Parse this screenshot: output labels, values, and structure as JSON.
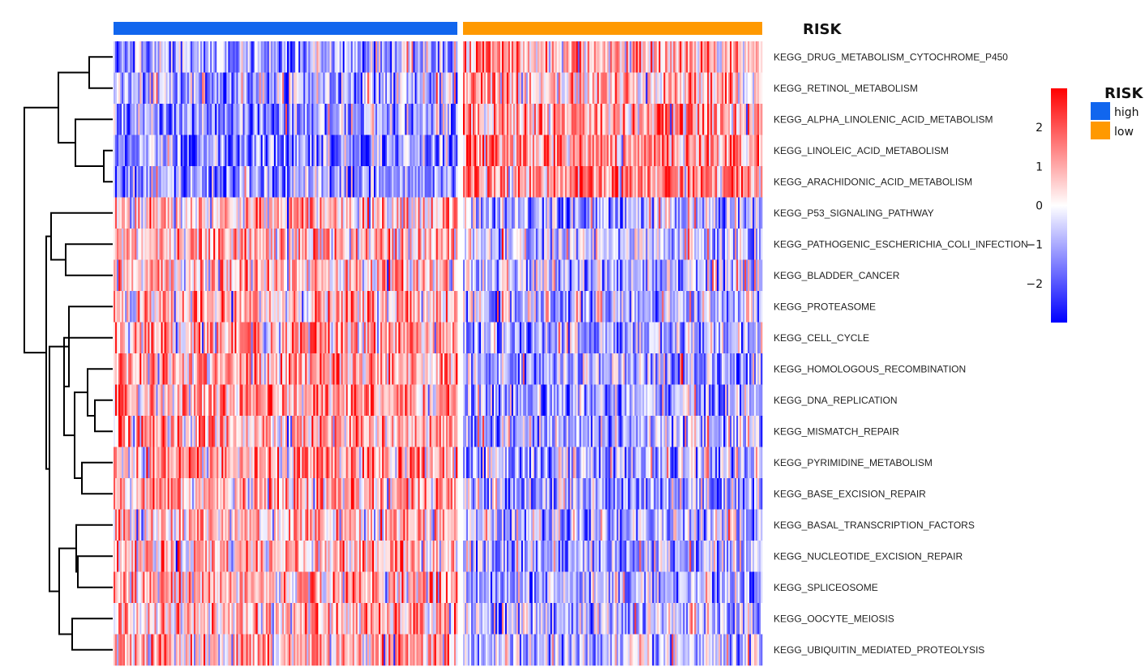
{
  "chart_data": {
    "type": "heatmap",
    "annotation_title": "RISK",
    "legend_title": "RISK",
    "groups": [
      {
        "name": "high",
        "color": "#1166ee",
        "n_samples": 210
      },
      {
        "name": "low",
        "color": "#ff9900",
        "n_samples": 185
      }
    ],
    "rows": [
      "KEGG_DRUG_METABOLISM_CYTOCHROME_P450",
      "KEGG_RETINOL_METABOLISM",
      "KEGG_ALPHA_LINOLENIC_ACID_METABOLISM",
      "KEGG_LINOLEIC_ACID_METABOLISM",
      "KEGG_ARACHIDONIC_ACID_METABOLISM",
      "KEGG_P53_SIGNALING_PATHWAY",
      "KEGG_PATHOGENIC_ESCHERICHIA_COLI_INFECTION",
      "KEGG_BLADDER_CANCER",
      "KEGG_PROTEASOME",
      "KEGG_CELL_CYCLE",
      "KEGG_HOMOLOGOUS_RECOMBINATION",
      "KEGG_DNA_REPLICATION",
      "KEGG_MISMATCH_REPAIR",
      "KEGG_PYRIMIDINE_METABOLISM",
      "KEGG_BASE_EXCISION_REPAIR",
      "KEGG_BASAL_TRANSCRIPTION_FACTORS",
      "KEGG_NUCLEOTIDE_EXCISION_REPAIR",
      "KEGG_SPLICEOSOME",
      "KEGG_OOCYTE_MEIOSIS",
      "KEGG_UBIQUITIN_MEDIATED_PROTEOLYSIS"
    ],
    "row_mean_high": [
      -1.0,
      -0.9,
      -1.3,
      -1.3,
      -1.4,
      0.7,
      0.6,
      0.6,
      0.7,
      1.0,
      0.9,
      1.0,
      0.9,
      0.8,
      0.9,
      0.7,
      0.8,
      0.8,
      0.7,
      0.7
    ],
    "row_mean_low": [
      0.9,
      0.8,
      1.1,
      1.2,
      1.3,
      -0.8,
      -0.7,
      -0.7,
      -0.8,
      -1.1,
      -1.0,
      -1.1,
      -1.0,
      -0.9,
      -1.0,
      -0.8,
      -0.9,
      -0.9,
      -0.8,
      -0.8
    ],
    "color_scale": {
      "min": -3,
      "max": 3,
      "colors": [
        "#0000ff",
        "#ffffff",
        "#ff0000"
      ],
      "ticks": [
        2,
        1,
        0,
        -1,
        -2
      ],
      "tick_labels": [
        "2",
        "1",
        "0",
        "−1",
        "−2"
      ]
    },
    "row_dendrogram_leaf_order": [
      0,
      1,
      2,
      3,
      4,
      5,
      6,
      7,
      8,
      9,
      10,
      11,
      12,
      13,
      14,
      15,
      16,
      17,
      18,
      19
    ]
  }
}
